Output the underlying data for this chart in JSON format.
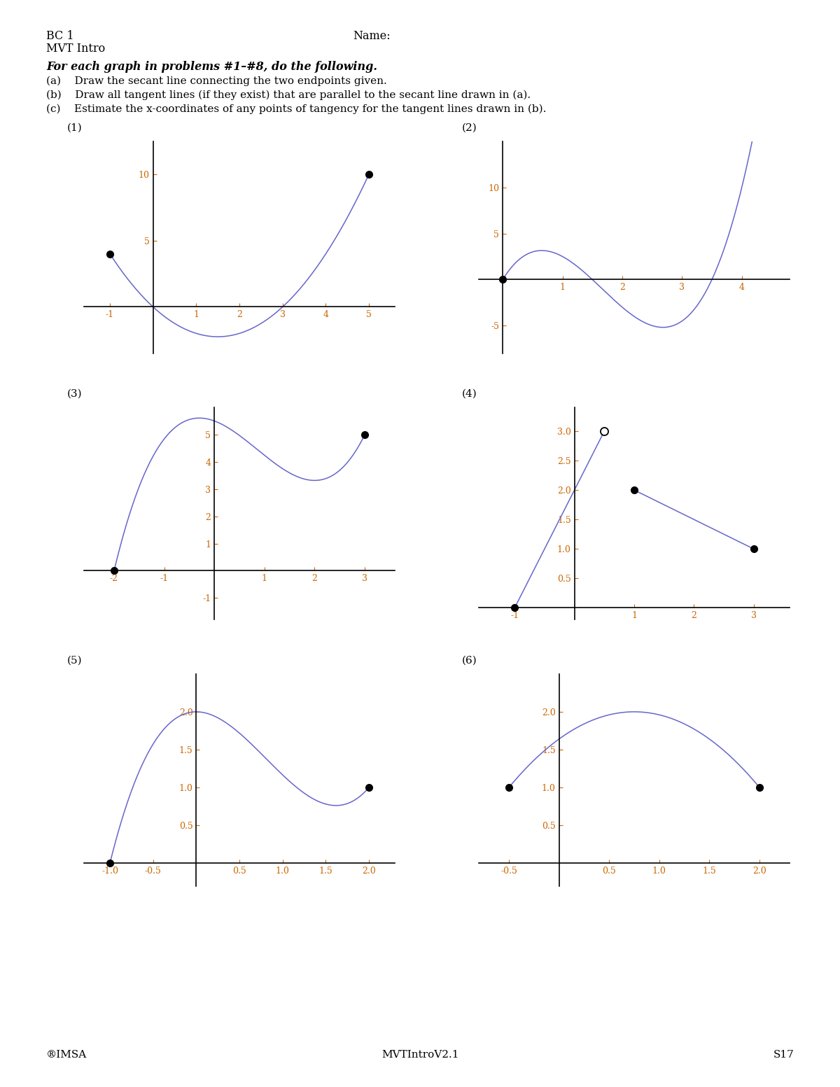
{
  "curve_color": "#6666cc",
  "tick_color": "#cc6600",
  "bg_color": "#ffffff",
  "header_line1": "BC 1",
  "header_line2": "MVT Intro",
  "header_name": "Name:",
  "instruction_bold": "For each graph in problems #1–#8, do the following.",
  "instr_a": "(a)    Draw the secant line connecting the two endpoints given.",
  "instr_b": "(b)    Draw all tangent lines (if they exist) that are parallel to the secant line drawn in (a).",
  "instr_c": "(c)    Estimate the x-coordinates of any points of tangency for the tangent lines drawn in (b).",
  "footer_left": "®IMSA",
  "footer_center": "MVTIntroV2.1",
  "footer_right": "S17"
}
